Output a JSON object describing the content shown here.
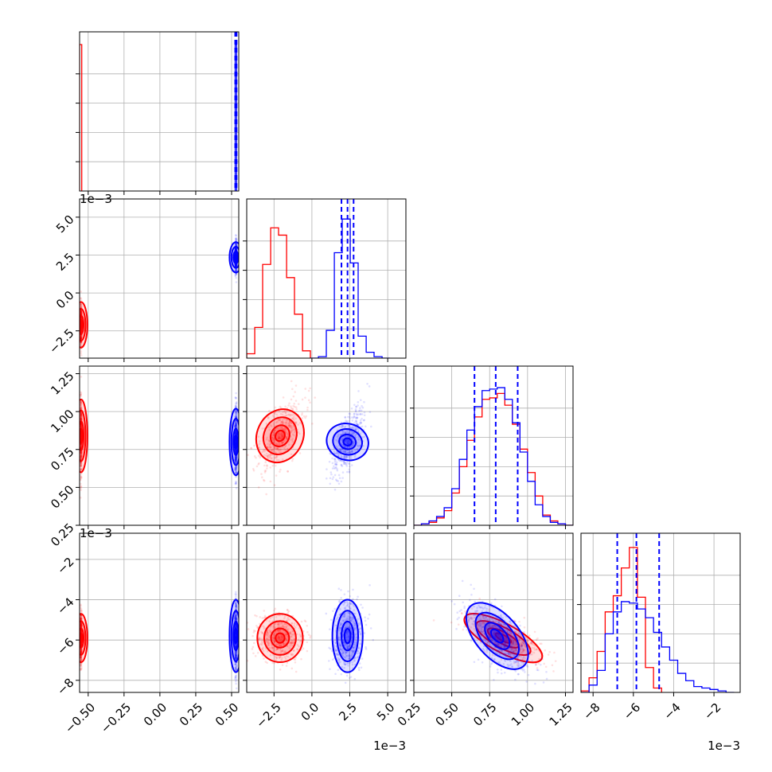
{
  "chart_data": {
    "type": "corner",
    "parameters": [
      {
        "index": 0,
        "range": [
          -0.56,
          0.55
        ],
        "ticks": [
          -0.5,
          -0.25,
          0.0,
          0.25,
          0.5
        ],
        "tick_labels": [
          "−0.50",
          "−0.25",
          "0.00",
          "0.25",
          "0.50"
        ],
        "offset": ""
      },
      {
        "index": 1,
        "range": [
          -4.3,
          6.2
        ],
        "ticks": [
          -2.5,
          0.0,
          2.5,
          5.0
        ],
        "tick_labels": [
          "−2.5",
          "0.0",
          "2.5",
          "5.0"
        ],
        "offset": "1e−3"
      },
      {
        "index": 2,
        "range": [
          0.25,
          1.3
        ],
        "ticks": [
          0.25,
          0.5,
          0.75,
          1.0,
          1.25
        ],
        "tick_labels": [
          "0.25",
          "0.50",
          "0.75",
          "1.00",
          "1.25"
        ],
        "offset": ""
      },
      {
        "index": 3,
        "range": [
          -8.6,
          -0.7
        ],
        "ticks": [
          -8,
          -6,
          -4,
          -2
        ],
        "tick_labels": [
          "−8",
          "−6",
          "−4",
          "−2"
        ],
        "offset": "1e−3"
      }
    ],
    "series": [
      {
        "color": "#ff0000",
        "centers": [
          -0.55,
          -2.1,
          0.84,
          -5.9
        ],
        "sigmas": [
          0.002,
          0.75,
          0.12,
          0.6
        ],
        "hist": [
          {
            "edges": [
              -0.56,
              -0.545
            ],
            "counts": [
              1.0
            ]
          },
          {
            "edges": [
              -4.3,
              -3.77,
              -3.25,
              -2.72,
              -2.2,
              -1.67,
              -1.15,
              -0.62,
              -0.1
            ],
            "counts": [
              0.03,
              0.21,
              0.64,
              0.89,
              0.84,
              0.55,
              0.3,
              0.05
            ]
          },
          {
            "edges": [
              0.25,
              0.3,
              0.35,
              0.4,
              0.45,
              0.5,
              0.55,
              0.6,
              0.65,
              0.7,
              0.75,
              0.8,
              0.85,
              0.9,
              0.95,
              1.0,
              1.05,
              1.1,
              1.15,
              1.2,
              1.25,
              1.3
            ],
            "counts": [
              0.0,
              0.01,
              0.02,
              0.05,
              0.1,
              0.22,
              0.4,
              0.58,
              0.74,
              0.86,
              0.87,
              0.9,
              0.82,
              0.69,
              0.52,
              0.36,
              0.2,
              0.07,
              0.03,
              0.01,
              0.0
            ]
          },
          {
            "edges": [
              -8.6,
              -8.2,
              -7.8,
              -7.4,
              -7.0,
              -6.6,
              -6.2,
              -5.8,
              -5.4,
              -5.0,
              -4.6
            ],
            "counts": [
              0.01,
              0.1,
              0.28,
              0.55,
              0.66,
              0.85,
              0.99,
              0.65,
              0.17,
              0.03
            ]
          }
        ],
        "quantiles": [
          [],
          [],
          [],
          []
        ]
      },
      {
        "color": "#0000ff",
        "centers": [
          0.53,
          2.35,
          0.8,
          -5.8
        ],
        "sigmas": [
          0.003,
          0.5,
          0.11,
          0.9
        ],
        "hist": [
          {
            "edges": [
              0.525,
              0.535
            ],
            "counts": [
              1.0
            ]
          },
          {
            "edges": [
              -0.1,
              0.43,
              0.95,
              1.48,
              2.0,
              2.53,
              3.05,
              3.58,
              4.1,
              4.63,
              5.15
            ],
            "counts": [
              0.0,
              0.01,
              0.19,
              0.72,
              0.95,
              0.65,
              0.15,
              0.04,
              0.01,
              0.0
            ]
          },
          {
            "edges": [
              0.25,
              0.3,
              0.35,
              0.4,
              0.45,
              0.5,
              0.55,
              0.6,
              0.65,
              0.7,
              0.75,
              0.8,
              0.85,
              0.9,
              0.95,
              1.0,
              1.05,
              1.1,
              1.15,
              1.2,
              1.25,
              1.3
            ],
            "counts": [
              0.0,
              0.01,
              0.03,
              0.06,
              0.12,
              0.25,
              0.45,
              0.65,
              0.81,
              0.92,
              0.93,
              0.94,
              0.86,
              0.7,
              0.5,
              0.3,
              0.14,
              0.06,
              0.02,
              0.01,
              0.0
            ]
          },
          {
            "edges": [
              -8.6,
              -8.2,
              -7.8,
              -7.4,
              -7.0,
              -6.6,
              -6.2,
              -5.8,
              -5.4,
              -5.0,
              -4.6,
              -4.2,
              -3.8,
              -3.4,
              -3.0,
              -2.6,
              -2.2,
              -1.8,
              -1.4,
              -1.0
            ],
            "counts": [
              0.0,
              0.05,
              0.15,
              0.4,
              0.55,
              0.62,
              0.61,
              0.57,
              0.51,
              0.41,
              0.31,
              0.22,
              0.13,
              0.08,
              0.04,
              0.03,
              0.02,
              0.01,
              0.0
            ]
          }
        ],
        "quantiles": [
          [
            0.525,
            0.53,
            0.535
          ],
          [
            1.95,
            2.35,
            2.75
          ],
          [
            0.65,
            0.79,
            0.935
          ],
          [
            -6.8,
            -5.85,
            -4.72
          ]
        ]
      }
    ]
  }
}
